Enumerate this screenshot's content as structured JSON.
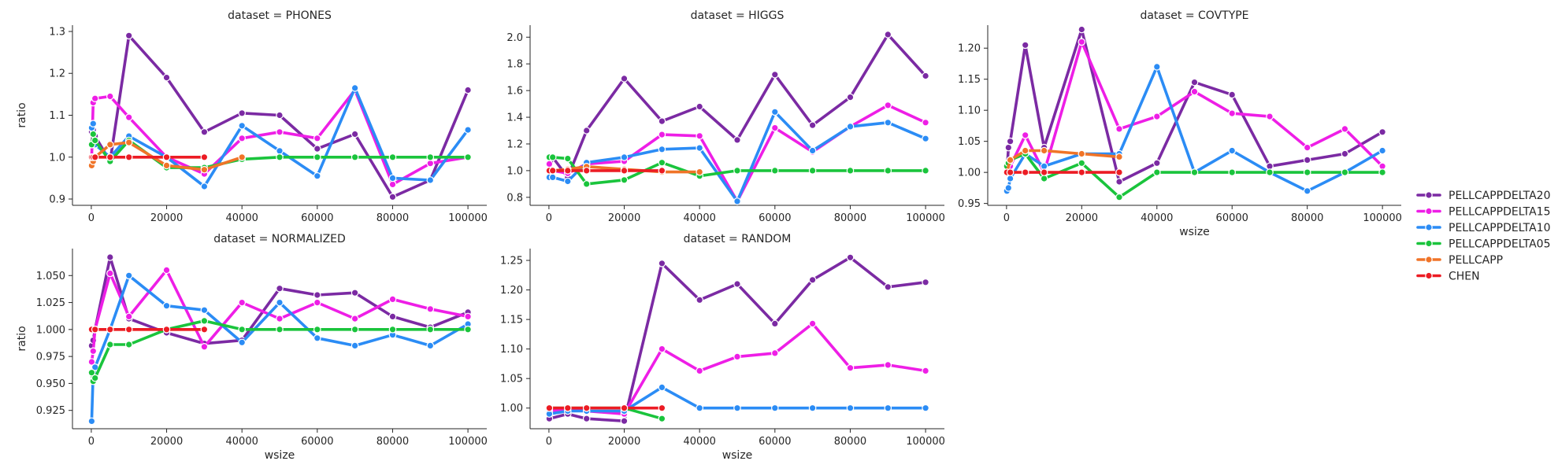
{
  "chart_data": [
    {
      "type": "line",
      "title": "dataset = PHONES",
      "xlabel": "",
      "ylabel": "ratio",
      "xlim": [
        -5000,
        105000
      ],
      "ylim": [
        0.885,
        1.315
      ],
      "xticks": [
        0,
        20000,
        40000,
        60000,
        80000,
        100000
      ],
      "xtick_labels": [
        "0",
        "20000",
        "40000",
        "60000",
        "80000",
        "100000"
      ],
      "yticks": [
        0.9,
        1.0,
        1.1,
        1.2,
        1.3
      ],
      "ytick_labels": [
        "0.9",
        "1.0",
        "1.1",
        "1.2",
        "1.3"
      ],
      "series": [
        {
          "name": "PELLCAPPDELTA20",
          "x": [
            100,
            500,
            1000,
            5000,
            10000,
            20000,
            30000,
            40000,
            50000,
            60000,
            70000,
            80000,
            90000,
            100000
          ],
          "y": [
            1.06,
            1.065,
            1.05,
            0.99,
            1.29,
            1.19,
            1.06,
            1.105,
            1.1,
            1.02,
            1.055,
            0.905,
            0.945,
            1.16
          ]
        },
        {
          "name": "PELLCAPPDELTA15",
          "x": [
            100,
            500,
            1000,
            5000,
            10000,
            20000,
            30000,
            40000,
            50000,
            60000,
            70000,
            80000,
            90000,
            100000
          ],
          "y": [
            1.0,
            1.13,
            1.14,
            1.145,
            1.095,
            1.0,
            0.96,
            1.045,
            1.06,
            1.045,
            1.16,
            0.935,
            0.985,
            1.0
          ]
        },
        {
          "name": "PELLCAPPDELTA10",
          "x": [
            100,
            500,
            1000,
            5000,
            10000,
            20000,
            30000,
            40000,
            50000,
            60000,
            70000,
            80000,
            90000,
            100000
          ],
          "y": [
            1.07,
            1.08,
            1.03,
            1.0,
            1.05,
            1.0,
            0.93,
            1.075,
            1.015,
            0.955,
            1.165,
            0.95,
            0.945,
            1.065
          ]
        },
        {
          "name": "PELLCAPPDELTA05",
          "x": [
            100,
            500,
            1000,
            5000,
            10000,
            20000,
            30000,
            40000,
            50000,
            60000,
            70000,
            80000,
            90000,
            100000
          ],
          "y": [
            1.03,
            1.055,
            1.04,
            0.99,
            1.04,
            0.975,
            0.975,
            0.995,
            1.0,
            1.0,
            1.0,
            1.0,
            1.0,
            1.0
          ]
        },
        {
          "name": "PELLCAPP",
          "x": [
            100,
            500,
            1000,
            5000,
            10000,
            20000,
            30000,
            40000
          ],
          "y": [
            0.98,
            0.99,
            1.0,
            1.03,
            1.035,
            0.98,
            0.97,
            1.0
          ]
        },
        {
          "name": "CHEN",
          "x": [
            100,
            500,
            1000,
            5000,
            10000,
            20000,
            30000
          ],
          "y": [
            1.0,
            1.0,
            1.0,
            1.0,
            1.0,
            1.0,
            1.0
          ]
        }
      ]
    },
    {
      "type": "line",
      "title": "dataset = HIGGS",
      "xlabel": "",
      "ylabel": "",
      "xlim": [
        -5000,
        105000
      ],
      "ylim": [
        0.74,
        2.09
      ],
      "xticks": [
        0,
        20000,
        40000,
        60000,
        80000,
        100000
      ],
      "xtick_labels": [
        "0",
        "20000",
        "40000",
        "60000",
        "80000",
        "100000"
      ],
      "yticks": [
        0.8,
        1.0,
        1.2,
        1.4,
        1.6,
        1.8,
        2.0
      ],
      "ytick_labels": [
        "0.8",
        "1.0",
        "1.2",
        "1.4",
        "1.6",
        "1.8",
        "2.0"
      ],
      "series": [
        {
          "name": "PELLCAPPDELTA20",
          "x": [
            100,
            1000,
            5000,
            10000,
            20000,
            30000,
            40000,
            50000,
            60000,
            70000,
            80000,
            90000,
            100000
          ],
          "y": [
            1.0,
            1.1,
            0.95,
            1.3,
            1.69,
            1.37,
            1.48,
            1.23,
            1.72,
            1.34,
            1.55,
            2.02,
            1.71
          ]
        },
        {
          "name": "PELLCAPPDELTA15",
          "x": [
            100,
            1000,
            5000,
            10000,
            20000,
            30000,
            40000,
            50000,
            60000,
            70000,
            80000,
            90000,
            100000
          ],
          "y": [
            1.05,
            1.0,
            0.98,
            1.05,
            1.07,
            1.27,
            1.26,
            0.77,
            1.32,
            1.14,
            1.33,
            1.49,
            1.36
          ]
        },
        {
          "name": "PELLCAPPDELTA10",
          "x": [
            100,
            1000,
            5000,
            10000,
            20000,
            30000,
            40000,
            50000,
            60000,
            70000,
            80000,
            90000,
            100000
          ],
          "y": [
            0.95,
            0.95,
            0.92,
            1.06,
            1.1,
            1.16,
            1.17,
            0.77,
            1.44,
            1.15,
            1.33,
            1.36,
            1.24
          ]
        },
        {
          "name": "PELLCAPPDELTA05",
          "x": [
            100,
            1000,
            5000,
            10000,
            20000,
            30000,
            40000,
            50000,
            60000,
            70000,
            80000,
            90000,
            100000
          ],
          "y": [
            1.1,
            1.1,
            1.09,
            0.9,
            0.93,
            1.06,
            0.96,
            1.0,
            1.0,
            1.0,
            1.0,
            1.0,
            1.0
          ]
        },
        {
          "name": "PELLCAPP",
          "x": [
            100,
            1000,
            5000,
            10000,
            20000,
            30000,
            40000
          ],
          "y": [
            1.0,
            1.0,
            1.01,
            1.03,
            1.01,
            0.99,
            0.99
          ]
        },
        {
          "name": "CHEN",
          "x": [
            100,
            1000,
            5000,
            10000,
            20000,
            30000
          ],
          "y": [
            1.0,
            1.0,
            1.0,
            1.0,
            1.0,
            1.0
          ]
        }
      ]
    },
    {
      "type": "line",
      "title": "dataset = COVTYPE",
      "xlabel": "wsize",
      "ylabel": "",
      "xlim": [
        -5000,
        105000
      ],
      "ylim": [
        0.947,
        1.237
      ],
      "xticks": [
        0,
        20000,
        40000,
        60000,
        80000,
        100000
      ],
      "xtick_labels": [
        "0",
        "20000",
        "40000",
        "60000",
        "80000",
        "100000"
      ],
      "yticks": [
        0.95,
        1.0,
        1.05,
        1.1,
        1.15,
        1.2
      ],
      "ytick_labels": [
        "0.95",
        "1.00",
        "1.05",
        "1.10",
        "1.15",
        "1.20"
      ],
      "series": [
        {
          "name": "PELLCAPPDELTA20",
          "x": [
            100,
            500,
            1000,
            5000,
            10000,
            20000,
            30000,
            40000,
            50000,
            60000,
            70000,
            80000,
            90000,
            100000
          ],
          "y": [
            1.0,
            1.04,
            1.05,
            1.205,
            1.04,
            1.23,
            0.985,
            1.015,
            1.145,
            1.125,
            1.01,
            1.02,
            1.03,
            1.065
          ]
        },
        {
          "name": "PELLCAPPDELTA15",
          "x": [
            100,
            500,
            1000,
            5000,
            10000,
            20000,
            30000,
            40000,
            50000,
            60000,
            70000,
            80000,
            90000,
            100000
          ],
          "y": [
            1.0,
            1.0,
            1.01,
            1.06,
            1.0,
            1.21,
            1.07,
            1.09,
            1.13,
            1.095,
            1.09,
            1.04,
            1.07,
            1.01
          ]
        },
        {
          "name": "PELLCAPPDELTA10",
          "x": [
            100,
            500,
            1000,
            5000,
            10000,
            20000,
            30000,
            40000,
            50000,
            60000,
            70000,
            80000,
            90000,
            100000
          ],
          "y": [
            0.97,
            0.975,
            0.99,
            1.03,
            1.01,
            1.03,
            1.03,
            1.17,
            1.0,
            1.035,
            1.0,
            0.97,
            1.0,
            1.035
          ]
        },
        {
          "name": "PELLCAPPDELTA05",
          "x": [
            100,
            500,
            1000,
            5000,
            10000,
            20000,
            30000,
            40000,
            50000,
            60000,
            70000,
            80000,
            90000,
            100000
          ],
          "y": [
            1.01,
            1.015,
            1.02,
            1.03,
            0.99,
            1.015,
            0.96,
            1.0,
            1.0,
            1.0,
            1.0,
            1.0,
            1.0,
            1.0
          ]
        },
        {
          "name": "PELLCAPP",
          "x": [
            100,
            1000,
            5000,
            10000,
            20000,
            30000
          ],
          "y": [
            1.0,
            1.02,
            1.035,
            1.035,
            1.03,
            1.025
          ]
        },
        {
          "name": "CHEN",
          "x": [
            100,
            1000,
            5000,
            10000,
            20000,
            30000
          ],
          "y": [
            1.0,
            1.0,
            1.0,
            1.0,
            1.0,
            1.0
          ]
        }
      ]
    },
    {
      "type": "line",
      "title": "dataset = NORMALIZED",
      "xlabel": "wsize",
      "ylabel": "ratio",
      "xlim": [
        -5000,
        105000
      ],
      "ylim": [
        0.908,
        1.075
      ],
      "xticks": [
        0,
        20000,
        40000,
        60000,
        80000,
        100000
      ],
      "xtick_labels": [
        "0",
        "20000",
        "40000",
        "60000",
        "80000",
        "100000"
      ],
      "yticks": [
        0.925,
        0.95,
        0.975,
        1.0,
        1.025,
        1.05
      ],
      "ytick_labels": [
        "0.925",
        "0.950",
        "0.975",
        "1.000",
        "1.025",
        "1.050"
      ],
      "series": [
        {
          "name": "PELLCAPPDELTA20",
          "x": [
            100,
            500,
            1000,
            5000,
            10000,
            20000,
            30000,
            40000,
            50000,
            60000,
            70000,
            80000,
            90000,
            100000
          ],
          "y": [
            0.985,
            0.99,
            1.0,
            1.067,
            1.01,
            0.997,
            0.987,
            0.99,
            1.038,
            1.032,
            1.034,
            1.012,
            1.002,
            1.016
          ]
        },
        {
          "name": "PELLCAPPDELTA15",
          "x": [
            100,
            500,
            1000,
            5000,
            10000,
            20000,
            30000,
            40000,
            50000,
            60000,
            70000,
            80000,
            90000,
            100000
          ],
          "y": [
            0.97,
            0.98,
            1.0,
            1.052,
            1.012,
            1.055,
            0.984,
            1.025,
            1.01,
            1.025,
            1.01,
            1.028,
            1.019,
            1.012
          ]
        },
        {
          "name": "PELLCAPPDELTA10",
          "x": [
            100,
            500,
            1000,
            5000,
            10000,
            20000,
            30000,
            40000,
            50000,
            60000,
            70000,
            80000,
            90000,
            100000
          ],
          "y": [
            0.915,
            0.96,
            0.965,
            1.0,
            1.05,
            1.022,
            1.018,
            0.988,
            1.025,
            0.992,
            0.985,
            0.995,
            0.985,
            1.005
          ]
        },
        {
          "name": "PELLCAPPDELTA05",
          "x": [
            100,
            500,
            1000,
            5000,
            10000,
            20000,
            30000,
            40000,
            50000,
            60000,
            70000,
            80000,
            90000,
            100000
          ],
          "y": [
            0.96,
            0.952,
            0.955,
            0.986,
            0.986,
            1.0,
            1.008,
            1.0,
            1.0,
            1.0,
            1.0,
            1.0,
            1.0,
            1.0
          ]
        },
        {
          "name": "PELLCAPP",
          "x": [
            100,
            1000,
            5000,
            10000,
            20000,
            30000
          ],
          "y": [
            1.0,
            1.0,
            1.0,
            1.0,
            1.0,
            1.0
          ]
        },
        {
          "name": "CHEN",
          "x": [
            100,
            1000,
            5000,
            10000,
            20000,
            30000
          ],
          "y": [
            1.0,
            1.0,
            1.0,
            1.0,
            1.0,
            1.0
          ]
        }
      ]
    },
    {
      "type": "line",
      "title": "dataset = RANDOM",
      "xlabel": "wsize",
      "ylabel": "",
      "xlim": [
        -5000,
        105000
      ],
      "ylim": [
        0.965,
        1.27
      ],
      "xticks": [
        0,
        20000,
        40000,
        60000,
        80000,
        100000
      ],
      "xtick_labels": [
        "0",
        "20000",
        "40000",
        "60000",
        "80000",
        "100000"
      ],
      "yticks": [
        1.0,
        1.05,
        1.1,
        1.15,
        1.2,
        1.25
      ],
      "ytick_labels": [
        "1.00",
        "1.05",
        "1.10",
        "1.15",
        "1.20",
        "1.25"
      ],
      "series": [
        {
          "name": "PELLCAPPDELTA20",
          "x": [
            100,
            5000,
            10000,
            20000,
            30000,
            40000,
            50000,
            60000,
            70000,
            80000,
            90000,
            100000
          ],
          "y": [
            0.982,
            0.99,
            0.982,
            0.978,
            1.245,
            1.183,
            1.21,
            1.143,
            1.217,
            1.255,
            1.205,
            1.213
          ]
        },
        {
          "name": "PELLCAPPDELTA15",
          "x": [
            100,
            5000,
            10000,
            20000,
            30000,
            40000,
            50000,
            60000,
            70000,
            80000,
            90000,
            100000
          ],
          "y": [
            0.995,
            0.998,
            0.995,
            0.99,
            1.1,
            1.063,
            1.087,
            1.093,
            1.143,
            1.068,
            1.073,
            1.063
          ]
        },
        {
          "name": "PELLCAPPDELTA10",
          "x": [
            100,
            5000,
            10000,
            20000,
            30000,
            40000,
            50000,
            60000,
            70000,
            80000,
            90000,
            100000
          ],
          "y": [
            0.99,
            0.995,
            0.995,
            0.995,
            1.035,
            1.0,
            1.0,
            1.0,
            1.0,
            1.0,
            1.0,
            1.0
          ]
        },
        {
          "name": "PELLCAPPDELTA05",
          "x": [
            100,
            5000,
            10000,
            20000,
            30000
          ],
          "y": [
            1.0,
            1.0,
            1.0,
            1.0,
            0.982
          ]
        },
        {
          "name": "PELLCAPP",
          "x": [
            100,
            5000,
            10000,
            20000
          ],
          "y": [
            1.0,
            1.0,
            1.0,
            1.0
          ]
        },
        {
          "name": "CHEN",
          "x": [
            100,
            5000,
            10000,
            20000,
            30000
          ],
          "y": [
            1.0,
            1.0,
            1.0,
            1.0,
            1.0
          ]
        }
      ]
    }
  ],
  "legend": {
    "placement": "right",
    "items": [
      {
        "name": "PELLCAPPDELTA20",
        "color": "#7b2aa3"
      },
      {
        "name": "PELLCAPPDELTA15",
        "color": "#ee1ee6"
      },
      {
        "name": "PELLCAPPDELTA10",
        "color": "#2b8cf5"
      },
      {
        "name": "PELLCAPPDELTA05",
        "color": "#1ac43c"
      },
      {
        "name": "PELLCAPP",
        "color": "#f07428"
      },
      {
        "name": "CHEN",
        "color": "#ec1c24"
      }
    ]
  }
}
